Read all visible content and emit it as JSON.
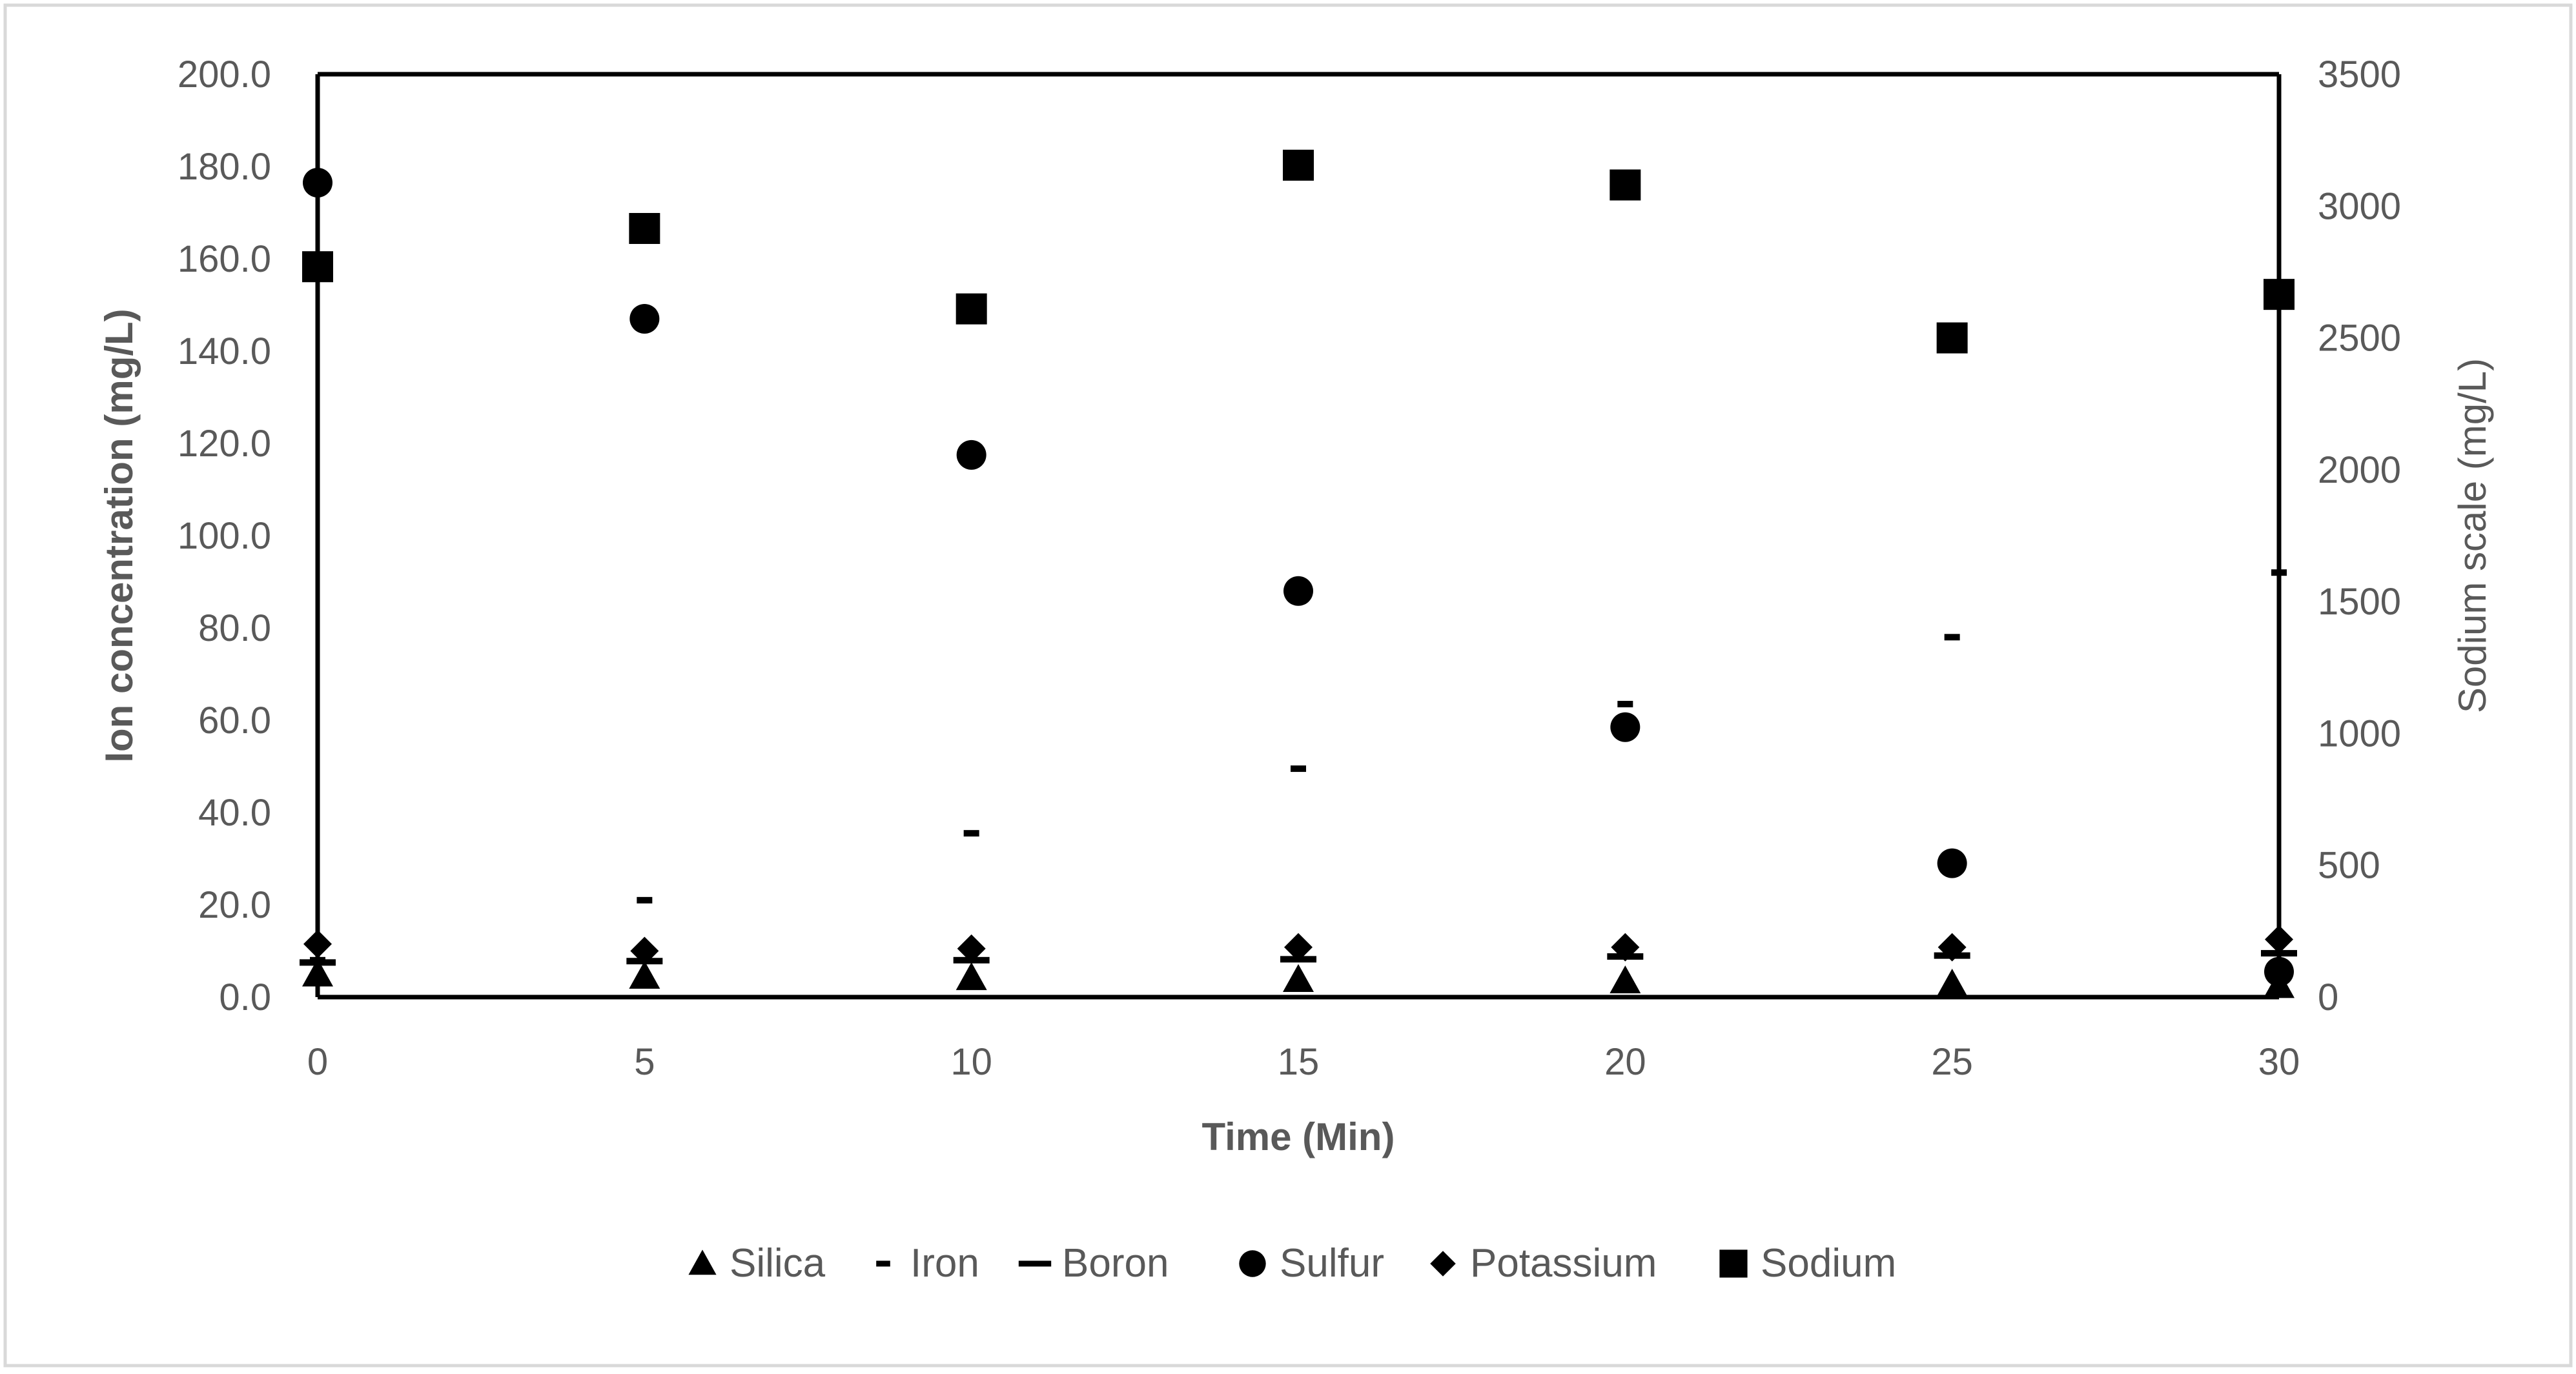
{
  "chart_data": {
    "type": "scatter",
    "xlabel": "Time (Min)",
    "ylabel": "Ion concentration (mg/L)",
    "y2label": "Sodium scale (mg/L)",
    "xlim": [
      0,
      30
    ],
    "ylim": [
      0,
      200
    ],
    "y2lim": [
      0,
      3500
    ],
    "x_ticks": [
      0,
      5,
      10,
      15,
      20,
      25,
      30
    ],
    "y_ticks": [
      "0.0",
      "20.0",
      "40.0",
      "60.0",
      "80.0",
      "100.0",
      "120.0",
      "140.0",
      "160.0",
      "180.0",
      "200.0"
    ],
    "y2_ticks": [
      "0",
      "500",
      "1000",
      "1500",
      "2000",
      "2500",
      "3000",
      "3500"
    ],
    "grid": false,
    "legend_position": "bottom",
    "x": [
      0,
      5,
      10,
      15,
      20,
      25,
      30
    ],
    "series": [
      {
        "name": "Silica",
        "marker": "triangle",
        "axis": "left",
        "color": "#000000",
        "values": [
          5.0,
          4.5,
          4.2,
          3.8,
          3.5,
          2.8,
          2.5
        ]
      },
      {
        "name": "Iron",
        "marker": "short-dash",
        "axis": "left",
        "color": "#000000",
        "values": [
          8.0,
          21.0,
          35.5,
          49.5,
          63.5,
          78.0,
          92.0
        ]
      },
      {
        "name": "Boron",
        "marker": "long-dash",
        "axis": "left",
        "color": "#000000",
        "values": [
          7.5,
          7.8,
          8.0,
          8.2,
          8.8,
          9.0,
          9.5
        ]
      },
      {
        "name": "Sulfur",
        "marker": "circle",
        "axis": "left",
        "color": "#000000",
        "values": [
          176.5,
          147.0,
          117.5,
          88.0,
          58.5,
          29.0,
          5.5
        ]
      },
      {
        "name": "Potassium",
        "marker": "diamond",
        "axis": "left",
        "color": "#000000",
        "values": [
          11.5,
          10.0,
          10.5,
          10.8,
          10.8,
          10.8,
          12.5
        ]
      },
      {
        "name": "Sodium",
        "marker": "square",
        "axis": "right",
        "color": "#000000",
        "values": [
          2770,
          2915,
          2610,
          3155,
          3080,
          2500,
          2665
        ]
      }
    ]
  }
}
